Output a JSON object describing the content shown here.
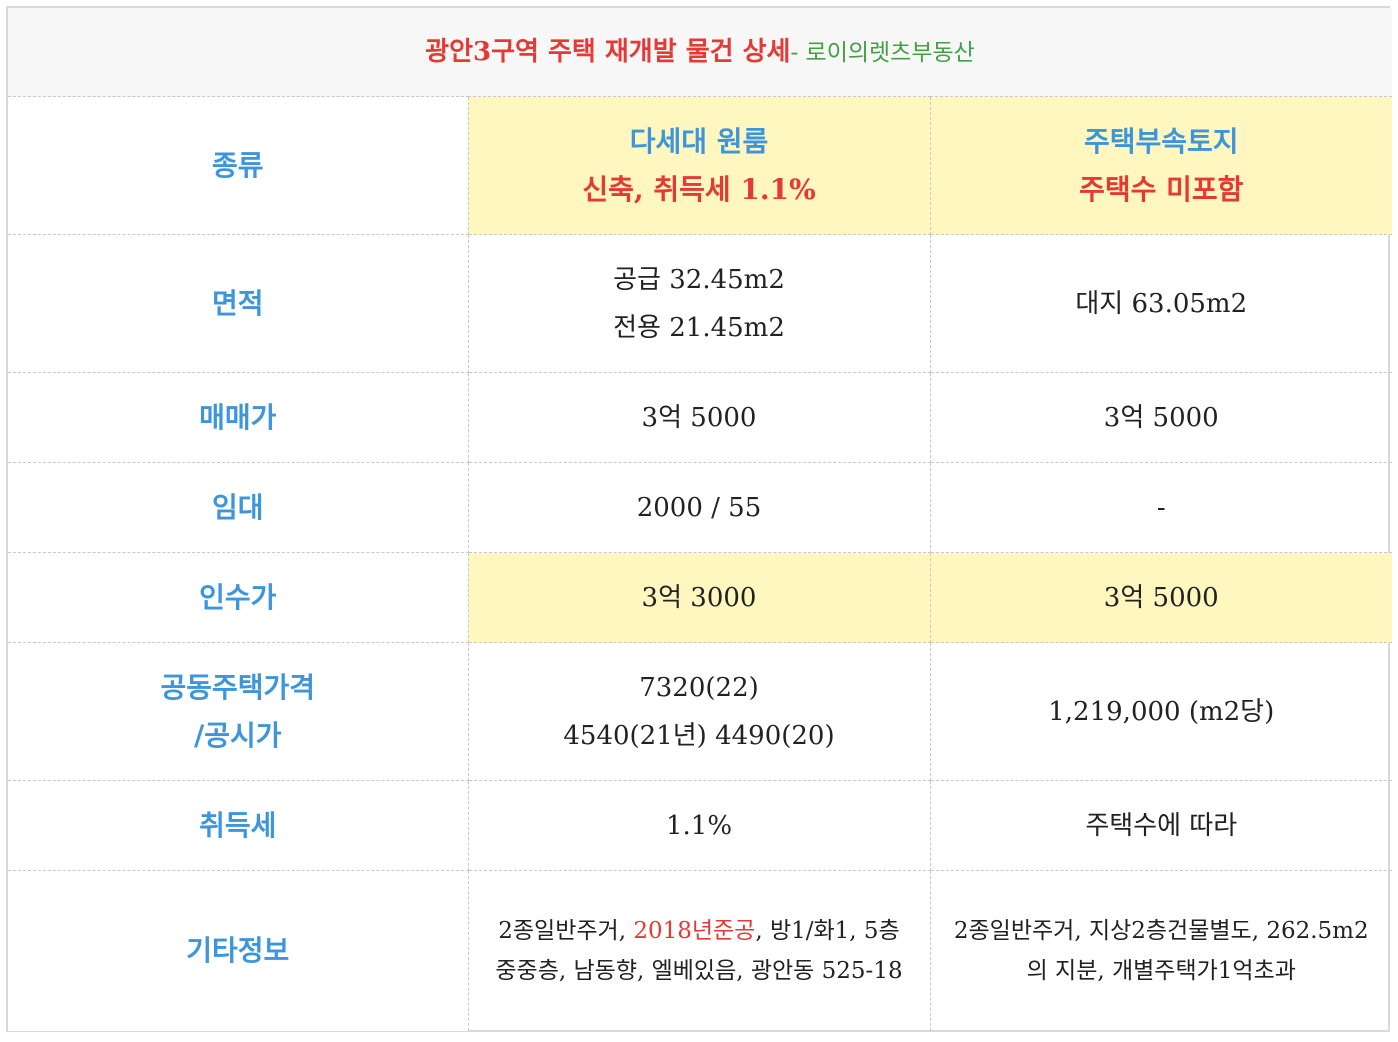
{
  "title": {
    "main": "광안3구역 주택 재개발 물건 상세",
    "dash": "- ",
    "sub": "로이의렛츠부동산"
  },
  "rows": {
    "type": {
      "label": "종류",
      "col1_line1": "다세대 원룸",
      "col1_line2": "신축, 취득세 1.1%",
      "col2_line1": "주택부속토지",
      "col2_line2": "주택수 미포함"
    },
    "area": {
      "label": "면적",
      "col1_line1": "공급 32.45m2",
      "col1_line2": "전용 21.45m2",
      "col2": "대지 63.05m2"
    },
    "sale_price": {
      "label": "매매가",
      "col1": "3억 5000",
      "col2": "3억 5000"
    },
    "lease": {
      "label": "임대",
      "col1": "2000 / 55",
      "col2": "-"
    },
    "takeover_price": {
      "label": "인수가",
      "col1": "3억 3000",
      "col2": "3억 5000"
    },
    "official_price": {
      "label_line1": "공동주택가격",
      "label_line2": "/공시가",
      "col1_line1": "7320(22)",
      "col1_line2": "4540(21년) 4490(20)",
      "col2": "1,219,000 (m2당)"
    },
    "acquisition_tax": {
      "label": "취득세",
      "col1": "1.1%",
      "col2": "주택수에 따라"
    },
    "other_info": {
      "label": "기타정보",
      "col1_part1": "2종일반주거, ",
      "col1_red": "2018년준공",
      "col1_part2": ", 방1/화1, 5층중중층, 남동향, 엘베있음, 광안동 525-18",
      "col2": "2종일반주거, 지상2층건물별도, 262.5m2의 지분, 개별주택가1억초과"
    }
  },
  "colors": {
    "label_blue": "#3d95dc",
    "accent_red": "#e53935",
    "sub_green": "#43a047",
    "highlight_yellow": "#fff7bf"
  }
}
